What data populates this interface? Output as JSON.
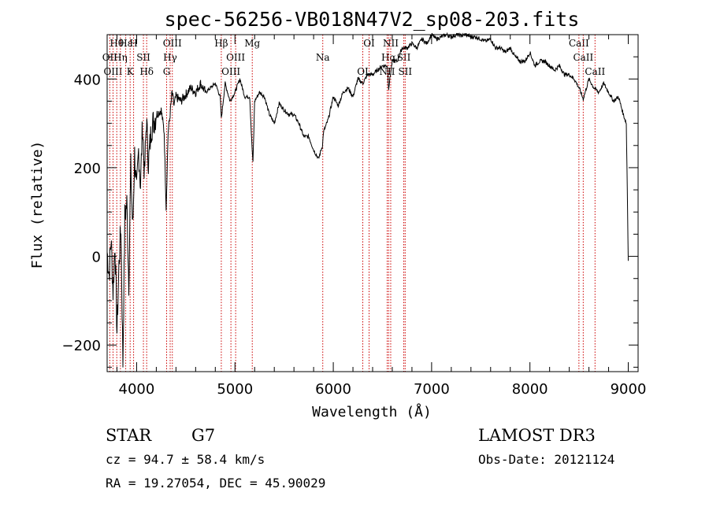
{
  "chart_data": {
    "type": "line",
    "title": "spec-56256-VB018N47V2_sp08-203.fits",
    "xlabel": "Wavelength (Å)",
    "ylabel": "Flux (relative)",
    "xlim": [
      3700,
      9100
    ],
    "ylim": [
      -260,
      500
    ],
    "xticks": [
      4000,
      5000,
      6000,
      7000,
      8000,
      9000
    ],
    "yticks": [
      -200,
      0,
      200,
      400
    ],
    "series": [
      {
        "name": "flux",
        "x": [
          3700,
          3720,
          3740,
          3760,
          3780,
          3800,
          3820,
          3840,
          3860,
          3880,
          3900,
          3920,
          3940,
          3960,
          3980,
          4000,
          4020,
          4040,
          4060,
          4080,
          4100,
          4120,
          4150,
          4200,
          4250,
          4280,
          4300,
          4320,
          4340,
          4360,
          4380,
          4400,
          4450,
          4500,
          4550,
          4600,
          4650,
          4700,
          4750,
          4800,
          4850,
          4861,
          4900,
          4950,
          5000,
          5050,
          5100,
          5150,
          5170,
          5183,
          5200,
          5250,
          5300,
          5350,
          5400,
          5450,
          5500,
          5550,
          5600,
          5650,
          5700,
          5750,
          5800,
          5850,
          5890,
          5900,
          5950,
          6000,
          6050,
          6100,
          6150,
          6200,
          6250,
          6300,
          6350,
          6400,
          6450,
          6500,
          6550,
          6563,
          6600,
          6650,
          6700,
          6750,
          6800,
          6850,
          6900,
          6950,
          7000,
          7050,
          7100,
          7150,
          7200,
          7250,
          7300,
          7350,
          7400,
          7450,
          7500,
          7550,
          7600,
          7650,
          7700,
          7750,
          7800,
          7850,
          7900,
          7950,
          8000,
          8050,
          8100,
          8150,
          8200,
          8250,
          8300,
          8350,
          8400,
          8450,
          8500,
          8542,
          8600,
          8650,
          8700,
          8750,
          8800,
          8850,
          8900,
          8950,
          8980,
          8990,
          9000
        ],
        "values": [
          10,
          -40,
          40,
          -80,
          30,
          -170,
          -20,
          70,
          -240,
          90,
          120,
          -60,
          200,
          60,
          230,
          140,
          240,
          160,
          300,
          180,
          310,
          210,
          290,
          320,
          330,
          280,
          110,
          280,
          320,
          370,
          340,
          360,
          350,
          365,
          380,
          370,
          390,
          370,
          380,
          390,
          360,
          310,
          390,
          350,
          370,
          400,
          360,
          360,
          260,
          210,
          350,
          370,
          360,
          320,
          300,
          345,
          330,
          320,
          320,
          300,
          270,
          270,
          240,
          220,
          250,
          280,
          310,
          360,
          340,
          370,
          380,
          360,
          400,
          390,
          410,
          410,
          420,
          430,
          430,
          380,
          440,
          440,
          470,
          470,
          480,
          470,
          490,
          480,
          500,
          490,
          495,
          500,
          495,
          500,
          498,
          500,
          495,
          495,
          490,
          485,
          490,
          470,
          470,
          460,
          470,
          450,
          440,
          440,
          460,
          430,
          440,
          440,
          430,
          420,
          430,
          410,
          410,
          400,
          380,
          355,
          400,
          380,
          370,
          390,
          370,
          350,
          360,
          320,
          300,
          150,
          -10
        ]
      }
    ],
    "spectral_lines": [
      {
        "name": "Hθ",
        "wavelength": 3798
      },
      {
        "name": "OII",
        "wavelength": 3727
      },
      {
        "name": "OIII",
        "wavelength": 3760
      },
      {
        "name": "Hε",
        "wavelength": 3889
      },
      {
        "name": "Hη",
        "wavelength": 3835
      },
      {
        "name": "K",
        "wavelength": 3934
      },
      {
        "name": "H",
        "wavelength": 3969
      },
      {
        "name": "SII",
        "wavelength": 4069
      },
      {
        "name": "Hδ",
        "wavelength": 4102
      },
      {
        "name": "OIII",
        "wavelength": 4363
      },
      {
        "name": "Hγ",
        "wavelength": 4341
      },
      {
        "name": "G",
        "wavelength": 4305
      },
      {
        "name": "Hβ",
        "wavelength": 4861
      },
      {
        "name": "OIII",
        "wavelength": 5007
      },
      {
        "name": "OIII",
        "wavelength": 4959
      },
      {
        "name": "Mg",
        "wavelength": 5176
      },
      {
        "name": "Na",
        "wavelength": 5893
      },
      {
        "name": "OI",
        "wavelength": 6300
      },
      {
        "name": "OI",
        "wavelength": 6364
      },
      {
        "name": "Hα",
        "wavelength": 6563
      },
      {
        "name": "NII",
        "wavelength": 6548
      },
      {
        "name": "NII",
        "wavelength": 6584
      },
      {
        "name": "SII",
        "wavelength": 6717
      },
      {
        "name": "SII",
        "wavelength": 6731
      },
      {
        "name": "CaII",
        "wavelength": 8498
      },
      {
        "name": "CaII",
        "wavelength": 8542
      },
      {
        "name": "CaII",
        "wavelength": 8662
      }
    ],
    "line_color": "#000000",
    "marker_color": "#cc0000"
  },
  "info": {
    "object_class": "STAR",
    "subclass": "G7",
    "cz": "cz = 94.7 ± 58.4 km/s",
    "coords": "RA =  19.27054, DEC =  45.90029",
    "survey": "LAMOST DR3",
    "obs_date": "Obs-Date: 20121124"
  }
}
